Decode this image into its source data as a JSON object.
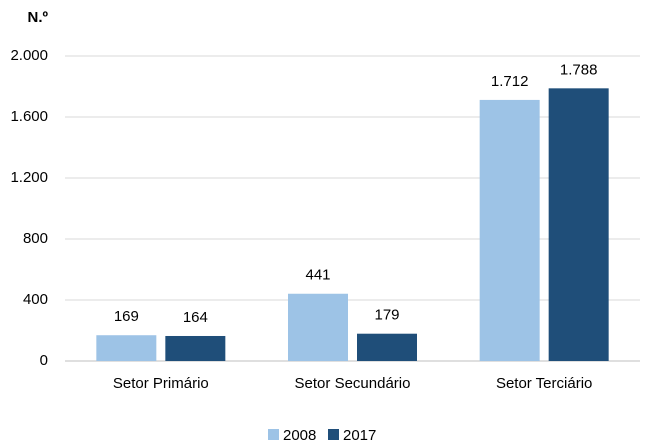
{
  "chart_data": {
    "type": "bar",
    "y_label": "N.º",
    "categories": [
      "Setor Primário",
      "Setor Secundário",
      "Setor Terciário"
    ],
    "series": [
      {
        "name": "2008",
        "color": "#9dc3e6",
        "values": [
          169,
          441,
          1712
        ],
        "value_labels": [
          "169",
          "441",
          "1.712"
        ]
      },
      {
        "name": "2017",
        "color": "#1f4e79",
        "values": [
          164,
          179,
          1788
        ],
        "value_labels": [
          "164",
          "179",
          "1.788"
        ]
      }
    ],
    "ylim": [
      0,
      2000
    ],
    "yticks": [
      0,
      400,
      800,
      {
        "value": 1200,
        "label": "1.200"
      },
      {
        "value": 1600,
        "label": "1.600"
      },
      {
        "value": 2000,
        "label": "2.000"
      }
    ],
    "grid": true,
    "legend": "bottom"
  }
}
